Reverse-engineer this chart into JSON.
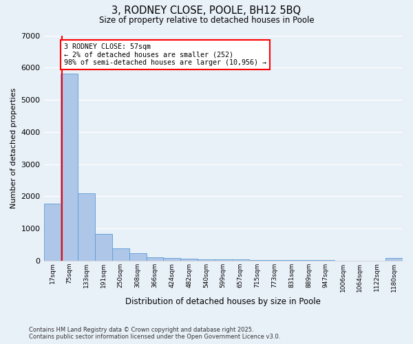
{
  "title": "3, RODNEY CLOSE, POOLE, BH12 5BQ",
  "subtitle": "Size of property relative to detached houses in Poole",
  "xlabel": "Distribution of detached houses by size in Poole",
  "ylabel": "Number of detached properties",
  "bar_color": "#aec6e8",
  "bar_edge_color": "#5b9bd5",
  "background_color": "#e8f0f8",
  "grid_color": "#ffffff",
  "fig_background": "#e8f0f8",
  "categories": [
    "17sqm",
    "75sqm",
    "133sqm",
    "191sqm",
    "250sqm",
    "308sqm",
    "366sqm",
    "424sqm",
    "482sqm",
    "540sqm",
    "599sqm",
    "657sqm",
    "715sqm",
    "773sqm",
    "831sqm",
    "889sqm",
    "947sqm",
    "1006sqm",
    "1064sqm",
    "1122sqm",
    "1180sqm"
  ],
  "values": [
    1780,
    5820,
    2100,
    820,
    380,
    220,
    100,
    70,
    55,
    45,
    35,
    30,
    20,
    18,
    10,
    8,
    6,
    5,
    5,
    4,
    70
  ],
  "ylim": [
    0,
    7000
  ],
  "yticks": [
    0,
    1000,
    2000,
    3000,
    4000,
    5000,
    6000,
    7000
  ],
  "red_line_x": 0.57,
  "annotation_title": "3 RODNEY CLOSE: 57sqm",
  "annotation_line1": "← 2% of detached houses are smaller (252)",
  "annotation_line2": "98% of semi-detached houses are larger (10,956) →",
  "footer_line1": "Contains HM Land Registry data © Crown copyright and database right 2025.",
  "footer_line2": "Contains public sector information licensed under the Open Government Licence v3.0."
}
